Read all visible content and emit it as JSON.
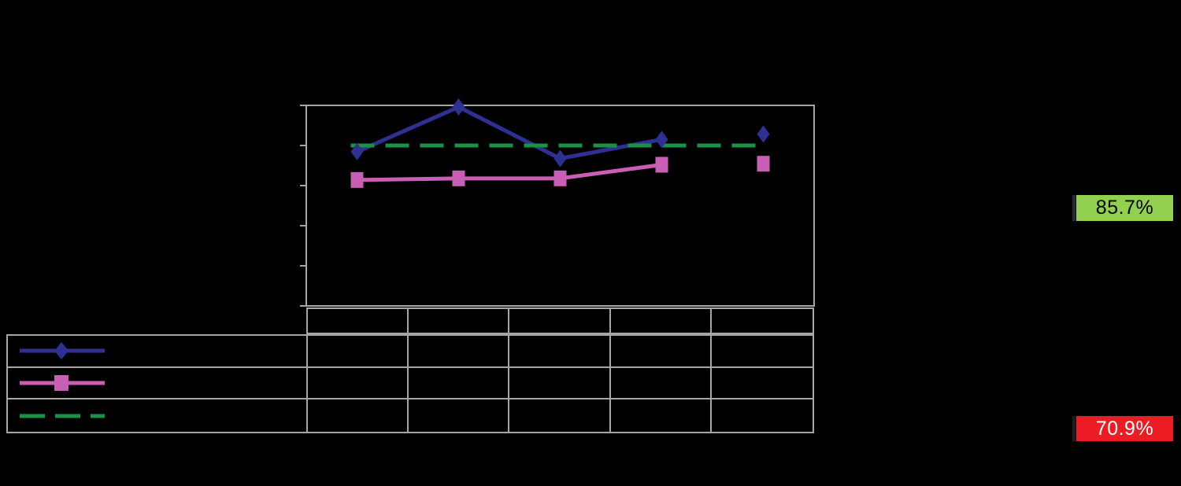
{
  "badges": {
    "top": {
      "value": "85.7%",
      "bg": "#92D050",
      "text_color": "#000000",
      "bar_color": "#2B2B2B"
    },
    "bottom": {
      "value": "70.9%",
      "bg": "#EC1C24",
      "text_color": "#FFFFFF",
      "bar_color": "#1D1D1D"
    }
  },
  "colors": {
    "grid": "#A6A6A6",
    "background": "#000000"
  },
  "table": {
    "columns": 5,
    "rows": 3,
    "visible_text": false
  },
  "chart_data": {
    "type": "line",
    "title": "",
    "categories": [
      "",
      "",
      "",
      "",
      ""
    ],
    "series": [
      {
        "name": "navy-diamond-series",
        "marker": "diamond",
        "color": "#2E3192",
        "values": [
          76.9,
          99.2,
          73.5,
          83.0,
          85.7
        ],
        "line_through_first_n_points": 4
      },
      {
        "name": "pink-square-series",
        "marker": "square",
        "color": "#C95FB5",
        "values": [
          62.8,
          63.6,
          63.6,
          70.4,
          70.9
        ],
        "line_through_first_n_points": 4
      },
      {
        "name": "green-dashed-target",
        "marker": "none",
        "style": "dashed",
        "color": "#169347",
        "values": [
          80,
          80,
          80,
          80,
          80
        ]
      }
    ],
    "ylim": [
      0,
      100
    ],
    "y_tick_count": 6,
    "grid": false,
    "legend_position": "table-left-column",
    "note": "axis, title, legend and table cell text are rendered black-on-black (not visible); series values estimated from marker positions against axis ticks; markers in the last column are not connected by lines"
  }
}
